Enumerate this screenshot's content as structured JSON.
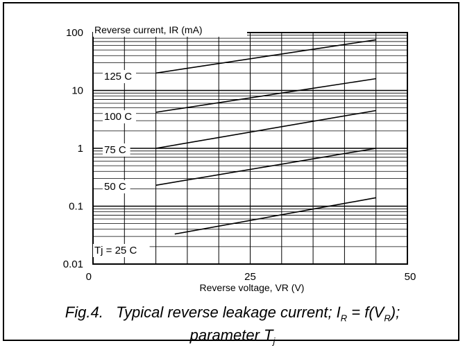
{
  "chart_data": {
    "type": "line",
    "title": "",
    "ylabel": "Reverse current, IR (mA)",
    "xlabel": "Reverse voltage, VR (V)",
    "x_ticks": [
      {
        "value": 0,
        "label": "0"
      },
      {
        "value": 25,
        "label": "25"
      },
      {
        "value": 50,
        "label": "50"
      }
    ],
    "y_ticks": [
      {
        "value": 100,
        "label": "100"
      },
      {
        "value": 10,
        "label": "10"
      },
      {
        "value": 1,
        "label": "1"
      },
      {
        "value": 0.1,
        "label": "0.1"
      },
      {
        "value": 0.01,
        "label": "0.01"
      }
    ],
    "xlim": [
      0,
      50
    ],
    "ylim": [
      0.01,
      100
    ],
    "yscale": "log",
    "grid": true,
    "series": [
      {
        "name": "125 C",
        "x": [
          10,
          45
        ],
        "y": [
          20,
          75
        ]
      },
      {
        "name": "100 C",
        "x": [
          10,
          45
        ],
        "y": [
          4.2,
          16
        ]
      },
      {
        "name": "75 C",
        "x": [
          10,
          45
        ],
        "y": [
          1,
          4.5
        ]
      },
      {
        "name": "50 C",
        "x": [
          10,
          45
        ],
        "y": [
          0.23,
          1
        ]
      },
      {
        "name": "Tj = 25 C",
        "x": [
          13,
          45
        ],
        "y": [
          0.033,
          0.14
        ]
      }
    ]
  },
  "caption": {
    "prefix": "Fig.4.",
    "text_a": "Typical reverse leakage current; I",
    "sub_a": "R",
    "text_b": " = f(V",
    "sub_b": "R",
    "text_c": ");",
    "line2": "parameter T",
    "sub_c": "j"
  }
}
